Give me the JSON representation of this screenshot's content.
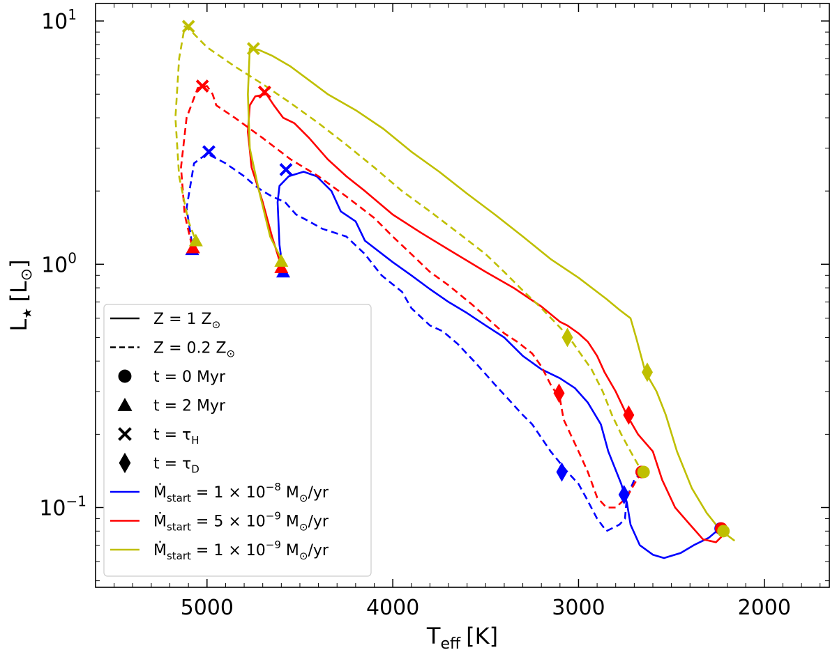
{
  "chart_data": {
    "type": "line",
    "title": "",
    "xlabel": "T",
    "xlabel_sub": "eff",
    "xlabel_unit": "[K]",
    "ylabel": "L",
    "ylabel_sub": "★",
    "ylabel_unit": "[L",
    "ylabel_unit_sub": "⊙",
    "ylabel_unit_close": "]",
    "xlim": [
      5600,
      1650
    ],
    "ylim": [
      0.047,
      11.8
    ],
    "x_inverted": true,
    "y_scale": "log",
    "x_ticks": [
      5000,
      4000,
      3000,
      2000
    ],
    "x_tick_labels": [
      "5000",
      "4000",
      "3000",
      "2000"
    ],
    "y_major_ticks": [
      {
        "value": 10,
        "base": "10",
        "exp": "1"
      },
      {
        "value": 1,
        "base": "10",
        "exp": "0"
      },
      {
        "value": 0.1,
        "base": "10",
        "exp": "−1"
      }
    ],
    "colors": {
      "blue": "#0000ff",
      "red": "#ff0000",
      "olive": "#bfbf00",
      "frame": "#000000"
    },
    "legend": {
      "placement": "lower-left",
      "entries": [
        {
          "kind": "line-solid",
          "color": "#000000",
          "label": "Z = 1 Z",
          "label_sub": "⊙",
          "label_tail": ""
        },
        {
          "kind": "line-dashed",
          "color": "#000000",
          "label": "Z = 0.2 Z",
          "label_sub": "⊙",
          "label_tail": ""
        },
        {
          "kind": "circle",
          "color": "#000000",
          "label": "t = 0 Myr",
          "label_sub": "",
          "label_tail": ""
        },
        {
          "kind": "triangle",
          "color": "#000000",
          "label": "t = 2 Myr",
          "label_sub": "",
          "label_tail": ""
        },
        {
          "kind": "cross",
          "color": "#000000",
          "label": "t = τ",
          "label_sub": "H",
          "label_tail": ""
        },
        {
          "kind": "diamond",
          "color": "#000000",
          "label": "t = τ",
          "label_sub": "D",
          "label_tail": ""
        },
        {
          "kind": "line-solid",
          "color": "#0000ff",
          "label": "Ṁ",
          "label_sub": "start",
          "label_tail": " = 1 × 10",
          "label_exp": "−8",
          "label_end": " M",
          "label_end_sub": "⊙",
          "label_final": "/yr"
        },
        {
          "kind": "line-solid",
          "color": "#ff0000",
          "label": "Ṁ",
          "label_sub": "start",
          "label_tail": " = 5 × 10",
          "label_exp": "−9",
          "label_end": " M",
          "label_end_sub": "⊙",
          "label_final": "/yr"
        },
        {
          "kind": "line-solid",
          "color": "#bfbf00",
          "label": "Ṁ",
          "label_sub": "start",
          "label_tail": " = 1 × 10",
          "label_exp": "−9",
          "label_end": " M",
          "label_end_sub": "⊙",
          "label_final": "/yr"
        }
      ]
    },
    "series": [
      {
        "name": "Mdot=1e-8, Z=1",
        "color": "#0000ff",
        "dash": false,
        "points": [
          [
            2240,
            0.082
          ],
          [
            2300,
            0.075
          ],
          [
            2380,
            0.07
          ],
          [
            2450,
            0.065
          ],
          [
            2540,
            0.062
          ],
          [
            2600,
            0.064
          ],
          [
            2670,
            0.07
          ],
          [
            2720,
            0.085
          ],
          [
            2740,
            0.105
          ],
          [
            2770,
            0.125
          ],
          [
            2840,
            0.17
          ],
          [
            2880,
            0.22
          ],
          [
            2950,
            0.27
          ],
          [
            3020,
            0.31
          ],
          [
            3100,
            0.34
          ],
          [
            3200,
            0.37
          ],
          [
            3300,
            0.42
          ],
          [
            3400,
            0.5
          ],
          [
            3500,
            0.56
          ],
          [
            3600,
            0.63
          ],
          [
            3700,
            0.7
          ],
          [
            3800,
            0.79
          ],
          [
            3900,
            0.9
          ],
          [
            4000,
            1.02
          ],
          [
            4150,
            1.25
          ],
          [
            4200,
            1.5
          ],
          [
            4280,
            1.65
          ],
          [
            4330,
            2.0
          ],
          [
            4410,
            2.3
          ],
          [
            4480,
            2.4
          ],
          [
            4560,
            2.3
          ],
          [
            4610,
            2.1
          ],
          [
            4620,
            1.8
          ],
          [
            4610,
            1.2
          ],
          [
            4590,
            0.93
          ]
        ],
        "markers": [
          {
            "type": "circle",
            "x": 2235,
            "y": 0.082
          },
          {
            "type": "triangle",
            "x": 4590,
            "y": 0.93
          },
          {
            "type": "cross",
            "x": 4575,
            "y": 2.45
          },
          {
            "type": "diamond",
            "x": 2755,
            "y": 0.113
          }
        ]
      },
      {
        "name": "Mdot=1e-8, Z=0.2",
        "color": "#0000ff",
        "dash": true,
        "points": [
          [
            2660,
            0.14
          ],
          [
            2700,
            0.13
          ],
          [
            2740,
            0.11
          ],
          [
            2750,
            0.09
          ],
          [
            2780,
            0.085
          ],
          [
            2850,
            0.08
          ],
          [
            2900,
            0.09
          ],
          [
            2960,
            0.11
          ],
          [
            3000,
            0.125
          ],
          [
            3060,
            0.14
          ],
          [
            3150,
            0.17
          ],
          [
            3250,
            0.22
          ],
          [
            3300,
            0.24
          ],
          [
            3380,
            0.28
          ],
          [
            3450,
            0.32
          ],
          [
            3550,
            0.39
          ],
          [
            3650,
            0.47
          ],
          [
            3730,
            0.53
          ],
          [
            3800,
            0.56
          ],
          [
            3900,
            0.66
          ],
          [
            3950,
            0.77
          ],
          [
            4060,
            0.9
          ],
          [
            4150,
            1.1
          ],
          [
            4250,
            1.3
          ],
          [
            4380,
            1.4
          ],
          [
            4450,
            1.5
          ],
          [
            4520,
            1.6
          ],
          [
            4580,
            1.8
          ],
          [
            4650,
            1.9
          ],
          [
            4700,
            2.0
          ],
          [
            4740,
            2.1
          ],
          [
            4800,
            2.3
          ],
          [
            4900,
            2.6
          ],
          [
            5000,
            2.85
          ],
          [
            5070,
            2.6
          ],
          [
            5110,
            1.7
          ],
          [
            5080,
            1.2
          ]
        ],
        "markers": [
          {
            "type": "circle",
            "x": 2660,
            "y": 0.14
          },
          {
            "type": "triangle",
            "x": 5080,
            "y": 1.15
          },
          {
            "type": "cross",
            "x": 4990,
            "y": 2.9
          },
          {
            "type": "diamond",
            "x": 3090,
            "y": 0.14
          }
        ]
      },
      {
        "name": "Mdot=5e-9, Z=1",
        "color": "#ff0000",
        "dash": false,
        "points": [
          [
            2200,
            0.08
          ],
          [
            2260,
            0.072
          ],
          [
            2330,
            0.074
          ],
          [
            2400,
            0.085
          ],
          [
            2480,
            0.1
          ],
          [
            2550,
            0.13
          ],
          [
            2600,
            0.17
          ],
          [
            2680,
            0.2
          ],
          [
            2740,
            0.24
          ],
          [
            2800,
            0.3
          ],
          [
            2860,
            0.36
          ],
          [
            2900,
            0.42
          ],
          [
            2950,
            0.48
          ],
          [
            3000,
            0.52
          ],
          [
            3060,
            0.56
          ],
          [
            3100,
            0.58
          ],
          [
            3200,
            0.67
          ],
          [
            3350,
            0.8
          ],
          [
            3500,
            0.93
          ],
          [
            3700,
            1.15
          ],
          [
            3850,
            1.35
          ],
          [
            4000,
            1.6
          ],
          [
            4150,
            2.0
          ],
          [
            4250,
            2.3
          ],
          [
            4350,
            2.7
          ],
          [
            4450,
            3.3
          ],
          [
            4530,
            3.8
          ],
          [
            4590,
            4.0
          ],
          [
            4640,
            4.5
          ],
          [
            4680,
            5.0
          ],
          [
            4740,
            4.9
          ],
          [
            4770,
            4.5
          ],
          [
            4780,
            3.5
          ],
          [
            4760,
            2.5
          ],
          [
            4700,
            1.8
          ],
          [
            4650,
            1.3
          ],
          [
            4600,
            0.98
          ]
        ],
        "markers": [
          {
            "type": "circle",
            "x": 2232,
            "y": 0.082
          },
          {
            "type": "triangle",
            "x": 4600,
            "y": 0.97
          },
          {
            "type": "cross",
            "x": 4690,
            "y": 5.1
          },
          {
            "type": "diamond",
            "x": 2730,
            "y": 0.24
          }
        ]
      },
      {
        "name": "Mdot=5e-9, Z=0.2",
        "color": "#ff0000",
        "dash": true,
        "points": [
          [
            2660,
            0.14
          ],
          [
            2700,
            0.125
          ],
          [
            2740,
            0.11
          ],
          [
            2800,
            0.1
          ],
          [
            2850,
            0.1
          ],
          [
            2900,
            0.11
          ],
          [
            2950,
            0.14
          ],
          [
            3000,
            0.17
          ],
          [
            3080,
            0.23
          ],
          [
            3100,
            0.28
          ],
          [
            3150,
            0.32
          ],
          [
            3200,
            0.38
          ],
          [
            3250,
            0.43
          ],
          [
            3330,
            0.48
          ],
          [
            3400,
            0.52
          ],
          [
            3470,
            0.58
          ],
          [
            3570,
            0.68
          ],
          [
            3700,
            0.82
          ],
          [
            3800,
            0.93
          ],
          [
            3900,
            1.1
          ],
          [
            4000,
            1.3
          ],
          [
            4100,
            1.55
          ],
          [
            4250,
            1.9
          ],
          [
            4400,
            2.3
          ],
          [
            4550,
            2.7
          ],
          [
            4700,
            3.3
          ],
          [
            4850,
            4.0
          ],
          [
            4950,
            4.5
          ],
          [
            4970,
            5.0
          ],
          [
            5000,
            5.4
          ],
          [
            5050,
            5.3
          ],
          [
            5110,
            4.0
          ],
          [
            5140,
            2.5
          ],
          [
            5120,
            1.6
          ],
          [
            5080,
            1.18
          ]
        ],
        "markers": [
          {
            "type": "circle",
            "x": 2660,
            "y": 0.14
          },
          {
            "type": "triangle",
            "x": 5075,
            "y": 1.17
          },
          {
            "type": "cross",
            "x": 5025,
            "y": 5.4
          },
          {
            "type": "diamond",
            "x": 3105,
            "y": 0.295
          }
        ]
      },
      {
        "name": "Mdot=1e-9, Z=1",
        "color": "#bfbf00",
        "dash": false,
        "points": [
          [
            2160,
            0.073
          ],
          [
            2210,
            0.078
          ],
          [
            2260,
            0.085
          ],
          [
            2310,
            0.095
          ],
          [
            2390,
            0.12
          ],
          [
            2470,
            0.17
          ],
          [
            2530,
            0.24
          ],
          [
            2580,
            0.3
          ],
          [
            2640,
            0.36
          ],
          [
            2690,
            0.5
          ],
          [
            2720,
            0.6
          ],
          [
            2780,
            0.65
          ],
          [
            2850,
            0.72
          ],
          [
            3000,
            0.88
          ],
          [
            3150,
            1.05
          ],
          [
            3300,
            1.3
          ],
          [
            3450,
            1.6
          ],
          [
            3600,
            1.95
          ],
          [
            3750,
            2.4
          ],
          [
            3900,
            2.9
          ],
          [
            4050,
            3.6
          ],
          [
            4200,
            4.3
          ],
          [
            4350,
            5.0
          ],
          [
            4450,
            5.7
          ],
          [
            4550,
            6.5
          ],
          [
            4650,
            7.2
          ],
          [
            4720,
            7.6
          ],
          [
            4770,
            7.7
          ],
          [
            4780,
            5.0
          ],
          [
            4770,
            3.0
          ],
          [
            4720,
            2.0
          ],
          [
            4660,
            1.3
          ],
          [
            4600,
            1.05
          ]
        ],
        "markers": [
          {
            "type": "circle",
            "x": 2220,
            "y": 0.08
          },
          {
            "type": "triangle",
            "x": 4600,
            "y": 1.03
          },
          {
            "type": "cross",
            "x": 4750,
            "y": 7.7
          },
          {
            "type": "diamond",
            "x": 2630,
            "y": 0.36
          }
        ]
      },
      {
        "name": "Mdot=1e-9, Z=0.2",
        "color": "#bfbf00",
        "dash": true,
        "points": [
          [
            2630,
            0.14
          ],
          [
            2680,
            0.15
          ],
          [
            2720,
            0.17
          ],
          [
            2770,
            0.2
          ],
          [
            2820,
            0.24
          ],
          [
            2870,
            0.3
          ],
          [
            2930,
            0.37
          ],
          [
            3000,
            0.44
          ],
          [
            3050,
            0.5
          ],
          [
            3100,
            0.55
          ],
          [
            3200,
            0.66
          ],
          [
            3300,
            0.78
          ],
          [
            3400,
            0.93
          ],
          [
            3500,
            1.1
          ],
          [
            3650,
            1.35
          ],
          [
            3800,
            1.65
          ],
          [
            3950,
            2.0
          ],
          [
            4100,
            2.5
          ],
          [
            4250,
            3.1
          ],
          [
            4400,
            3.8
          ],
          [
            4550,
            4.6
          ],
          [
            4700,
            5.5
          ],
          [
            4850,
            6.5
          ],
          [
            5000,
            7.8
          ],
          [
            5080,
            9.0
          ],
          [
            5120,
            9.5
          ],
          [
            5150,
            7.0
          ],
          [
            5170,
            4.0
          ],
          [
            5150,
            2.3
          ],
          [
            5100,
            1.5
          ],
          [
            5060,
            1.25
          ]
        ],
        "markers": [
          {
            "type": "circle",
            "x": 2650,
            "y": 0.14
          },
          {
            "type": "triangle",
            "x": 5060,
            "y": 1.25
          },
          {
            "type": "cross",
            "x": 5100,
            "y": 9.5
          },
          {
            "type": "diamond",
            "x": 3060,
            "y": 0.5
          }
        ]
      }
    ]
  }
}
